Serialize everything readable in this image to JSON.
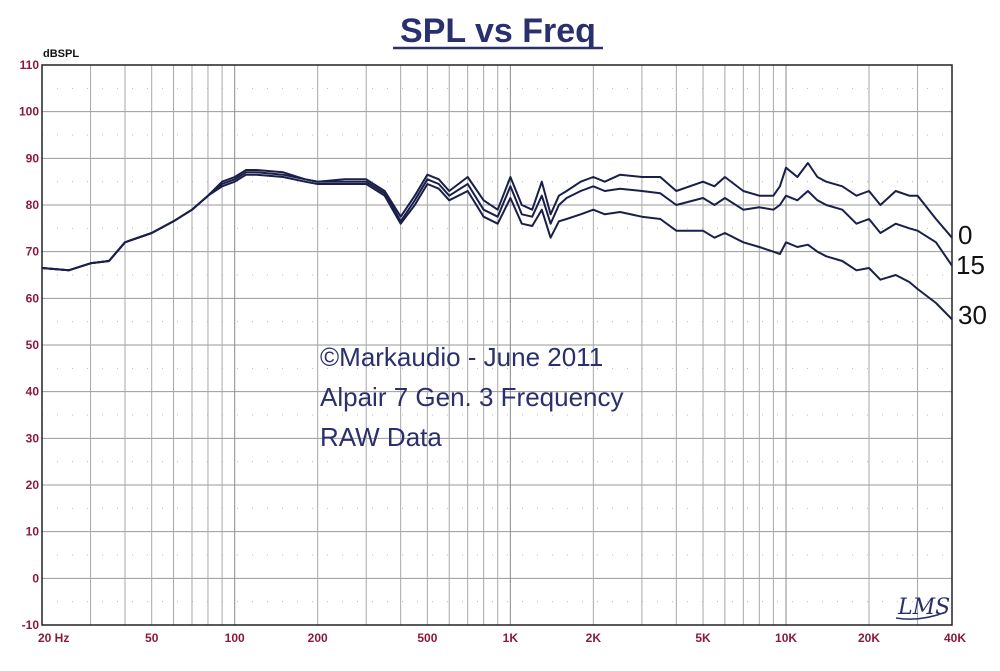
{
  "chart_data": {
    "type": "line",
    "title": "SPL vs Freq",
    "ylabel": "dBSPL",
    "xlabel": "",
    "xscale": "log",
    "xlim": [
      20,
      40000
    ],
    "ylim": [
      -10,
      110
    ],
    "yticks": [
      -10,
      0,
      10,
      20,
      30,
      40,
      50,
      60,
      70,
      80,
      90,
      100,
      110
    ],
    "xticks": [
      {
        "value": 20,
        "label": "20 Hz"
      },
      {
        "value": 50,
        "label": "50"
      },
      {
        "value": 100,
        "label": "100"
      },
      {
        "value": 200,
        "label": "200"
      },
      {
        "value": 500,
        "label": "500"
      },
      {
        "value": 1000,
        "label": "1K"
      },
      {
        "value": 2000,
        "label": "2K"
      },
      {
        "value": 5000,
        "label": "5K"
      },
      {
        "value": 10000,
        "label": "10K"
      },
      {
        "value": 20000,
        "label": "20K"
      },
      {
        "value": 40000,
        "label": "40K"
      }
    ],
    "grid": true,
    "annotations": [
      "©Markaudio - June 2011",
      "Alpair 7 Gen. 3 Frequency",
      "RAW Data"
    ],
    "series": [
      {
        "name": "0",
        "color": "#1a1f4a",
        "x": [
          20,
          25,
          30,
          35,
          40,
          50,
          60,
          70,
          80,
          90,
          100,
          110,
          120,
          150,
          180,
          200,
          250,
          300,
          350,
          400,
          450,
          500,
          550,
          600,
          700,
          800,
          900,
          1000,
          1100,
          1200,
          1300,
          1400,
          1500,
          1600,
          1800,
          2000,
          2200,
          2500,
          3000,
          3500,
          4000,
          5000,
          5500,
          6000,
          7000,
          8000,
          9000,
          9500,
          10000,
          11000,
          12000,
          13000,
          14000,
          16000,
          18000,
          20000,
          22000,
          25000,
          28000,
          30000,
          35000,
          40000
        ],
        "y": [
          66.5,
          66,
          67.5,
          68,
          72,
          74,
          76.5,
          79,
          82,
          85,
          86,
          87.5,
          87.5,
          87,
          85.5,
          85,
          85.5,
          85.5,
          83,
          77.5,
          82,
          86.5,
          85.5,
          83,
          86,
          81,
          79,
          86,
          80,
          79,
          85,
          78,
          82,
          83,
          85,
          86,
          85,
          86.5,
          86,
          86,
          83,
          85,
          84,
          86,
          83,
          82,
          82,
          84,
          88,
          86,
          89,
          86,
          85,
          84,
          82,
          83,
          80,
          83,
          82,
          82,
          77,
          73
        ]
      },
      {
        "name": "15",
        "color": "#1a1f4a",
        "x": [
          20,
          25,
          30,
          35,
          40,
          50,
          60,
          70,
          80,
          90,
          100,
          110,
          120,
          150,
          180,
          200,
          250,
          300,
          350,
          400,
          450,
          500,
          550,
          600,
          700,
          800,
          900,
          1000,
          1100,
          1200,
          1300,
          1400,
          1500,
          1600,
          1800,
          2000,
          2200,
          2500,
          3000,
          3500,
          4000,
          5000,
          5500,
          6000,
          7000,
          8000,
          9000,
          9500,
          10000,
          11000,
          12000,
          13000,
          14000,
          16000,
          18000,
          20000,
          22000,
          25000,
          28000,
          30000,
          35000,
          40000
        ],
        "y": [
          66.5,
          66,
          67.5,
          68,
          72,
          74,
          76.5,
          79,
          82,
          84.5,
          85.5,
          87,
          87,
          86.5,
          85.5,
          85,
          85,
          85,
          82.5,
          76.5,
          81,
          85.5,
          84.5,
          82,
          84.5,
          79,
          77.5,
          84,
          78,
          77.5,
          82,
          76,
          80,
          81.5,
          83,
          84,
          83,
          83.5,
          83,
          82.5,
          80,
          81.5,
          80,
          81.5,
          79,
          79.5,
          79,
          80,
          82,
          81,
          83,
          81,
          80,
          79,
          76,
          77,
          74,
          76,
          75,
          74.5,
          72,
          67
        ]
      },
      {
        "name": "30",
        "color": "#1a1f4a",
        "x": [
          20,
          25,
          30,
          35,
          40,
          50,
          60,
          70,
          80,
          90,
          100,
          110,
          120,
          150,
          180,
          200,
          250,
          300,
          350,
          400,
          450,
          500,
          550,
          600,
          700,
          800,
          900,
          1000,
          1100,
          1200,
          1300,
          1400,
          1500,
          1600,
          1800,
          2000,
          2200,
          2500,
          3000,
          3500,
          4000,
          5000,
          5500,
          6000,
          7000,
          8000,
          9000,
          9500,
          10000,
          11000,
          12000,
          13000,
          14000,
          16000,
          18000,
          20000,
          22000,
          25000,
          28000,
          30000,
          35000,
          40000
        ],
        "y": [
          66.5,
          66,
          67.5,
          68,
          72,
          74,
          76.5,
          79,
          82,
          84,
          85,
          86.5,
          86.5,
          86,
          85,
          84.5,
          84.5,
          84.5,
          82,
          76,
          80,
          84.5,
          83.5,
          81,
          83,
          77.5,
          76,
          81.5,
          76,
          75.5,
          79,
          73,
          76.5,
          77,
          78,
          79,
          78,
          78.5,
          77.5,
          77,
          74.5,
          74.5,
          73,
          74,
          72,
          71,
          70,
          69.5,
          72,
          71,
          71.5,
          70,
          69,
          68,
          66,
          66.5,
          64,
          65,
          63.5,
          62,
          59,
          55.5
        ]
      }
    ]
  },
  "logo_text": "LMS"
}
